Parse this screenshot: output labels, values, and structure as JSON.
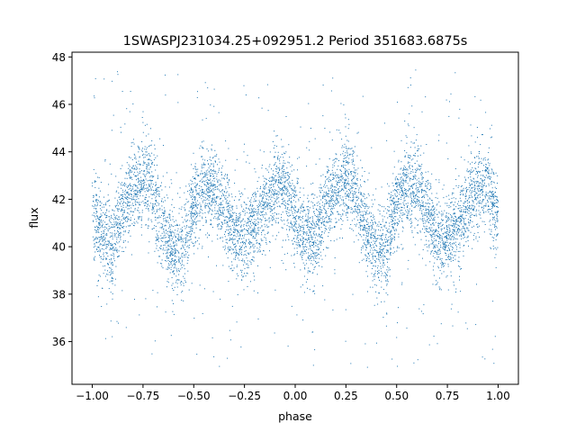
{
  "chart_data": {
    "type": "scatter",
    "title": "1SWASPJ231034.25+092951.2 Period 351683.6875s",
    "xlabel": "phase",
    "ylabel": "flux",
    "xlim": [
      -1.1,
      1.1
    ],
    "ylim": [
      34.2,
      48.2
    ],
    "xticks": [
      -1.0,
      -0.75,
      -0.5,
      -0.25,
      0.0,
      0.25,
      0.5,
      0.75,
      1.0
    ],
    "xtick_labels": [
      "−1.00",
      "−0.75",
      "−0.50",
      "−0.25",
      "0.00",
      "0.25",
      "0.50",
      "0.75",
      "1.00"
    ],
    "yticks": [
      36,
      38,
      40,
      42,
      44,
      46,
      48
    ],
    "ytick_labels": [
      "36",
      "38",
      "40",
      "42",
      "44",
      "46",
      "48"
    ],
    "grid": false,
    "point_color": "#1f77b4",
    "series": [
      {
        "profile_phase": [
          0.0,
          0.05,
          0.1,
          0.15,
          0.2,
          0.25,
          0.3,
          0.35,
          0.4,
          0.45,
          0.5,
          0.55,
          0.6,
          0.65,
          0.7,
          0.75,
          0.8,
          0.85,
          0.9,
          0.95,
          1.0
        ],
        "profile_flux": [
          41.3,
          40.4,
          40.3,
          41.6,
          42.4,
          42.9,
          42.3,
          40.8,
          39.8,
          40.0,
          41.8,
          42.5,
          42.4,
          41.5,
          40.4,
          40.3,
          41.0,
          41.8,
          42.4,
          42.7,
          41.0
        ],
        "scatter_sd": 0.9,
        "outlier_range": [
          34.9,
          47.5
        ]
      }
    ]
  }
}
